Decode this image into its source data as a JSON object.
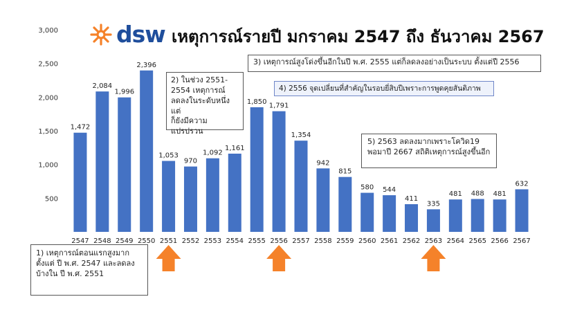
{
  "header": {
    "logo_text": "dsw",
    "title": "เหตุการณ์รายปี มกราคม 2547 ถึง ธันวาคม 2567"
  },
  "colors": {
    "bar": "#4472c4",
    "arrow": "#f5822a",
    "logo_mark": "#f5822a",
    "logo_text": "#1f4e9c"
  },
  "chart_data": {
    "type": "bar",
    "categories": [
      "2547",
      "2548",
      "2549",
      "2550",
      "2551",
      "2552",
      "2553",
      "2554",
      "2555",
      "2556",
      "2557",
      "2558",
      "2559",
      "2560",
      "2561",
      "2562",
      "2563",
      "2564",
      "2565",
      "2566",
      "2567"
    ],
    "values": [
      1472,
      2084,
      1996,
      2396,
      1053,
      970,
      1092,
      1161,
      1850,
      1791,
      1354,
      942,
      815,
      580,
      544,
      411,
      335,
      481,
      488,
      481,
      632
    ],
    "value_labels": [
      "1,472",
      "2,084",
      "1,996",
      "2,396",
      "1,053",
      "970",
      "1,092",
      "1,161",
      "1,850",
      "1,791",
      "1,354",
      "942",
      "815",
      "580",
      "544",
      "411",
      "335",
      "481",
      "488",
      "481",
      "632"
    ],
    "yticks": [
      "3,000",
      "2,500",
      "2,000",
      "1,500",
      "1,000",
      "500"
    ],
    "ytick_values": [
      3000,
      2500,
      2000,
      1500,
      1000,
      500
    ],
    "ylim": [
      0,
      3000
    ],
    "grid": false,
    "highlighted_years": [
      "2551",
      "2556",
      "2563"
    ]
  },
  "annotations": {
    "note1": "1) เหตุการณ์ตอนแรกสูงมาก\nตั้งแต่ ปี พ.ศ. 2547 และลดลง\nบ้างใน ปี พ.ศ. 2551",
    "note2": "2) ในช่วง 2551-\n2554 เหตุการณ์\nลดลงในระดับหนึ่ง แต่\nก็ยังมีความแปรปรวน",
    "note3": "3) เหตุการณ์สูงโด่งขึ้นอีกในปี พ.ศ. 2555 แต่ก็ลดลงอย่างเป็นระบบ ตั้งแต่ปี 2556",
    "note4": "4) 2556 จุดเปลี่ยนที่สำคัญในรอบยี่สิบปีเพราะการพูดคุยสันติภาพ",
    "note5": "5) 2563 ลดลงมากเพราะโควิด19\nพอมาปี 2667 สถิติเหตุการณ์สูงขึ้นอีก"
  }
}
